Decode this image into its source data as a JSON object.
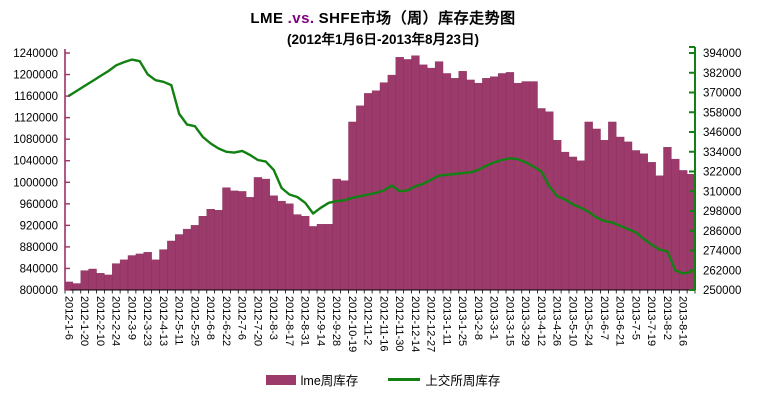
{
  "title": {
    "part1": "LME",
    "part2": ".vs.",
    "part3": "SHFE市场（周）库存走势图",
    "vs_color": "#800080",
    "subtitle": "(2012年1月6日-2013年8月23日)"
  },
  "legend": [
    {
      "label": "lme周库存",
      "type": "bar",
      "color": "#9c3a6b"
    },
    {
      "label": "上交所周库存",
      "type": "line",
      "color": "#128012"
    }
  ],
  "chart_data": {
    "type": "bar+line combo, dual axis",
    "title": "LME .vs. SHFE市场（周）库存走势图",
    "subtitle": "(2012年1月6日-2013年8月23日)",
    "grid": "off",
    "legend_position": "bottom",
    "label_every": 2,
    "x_labels": [
      "2012-1-6",
      "2012-1-20",
      "2012-2-10",
      "2012-2-24",
      "2012-3-9",
      "2012-3-23",
      "2012-4-13",
      "2012-5-11",
      "2012-5-25",
      "2012-6-8",
      "2012-6-22",
      "2012-7-6",
      "2012-7-20",
      "2012-8-3",
      "2012-8-17",
      "2012-8-31",
      "2012-9-14",
      "2012-9-28",
      "2012-10-19",
      "2012-11-2",
      "2012-11-16",
      "2012-11-30",
      "2012-12-14",
      "2012-12-27",
      "2013-1-11",
      "2013-1-25",
      "2013-2-8",
      "2013-3-1",
      "2013-3-15",
      "2013-3-29",
      "2013-4-12",
      "2013-4-26",
      "2013-5-10",
      "2013-5-24",
      "2013-6-7",
      "2013-6-21",
      "2013-7-5",
      "2013-7-19",
      "2013-8-2",
      "2013-8-16"
    ],
    "left_axis": {
      "min": 800000,
      "max": 1240000,
      "step": 40000,
      "color": "#993366",
      "ticks": [
        "800000",
        "840000",
        "880000",
        "920000",
        "960000",
        "1000000",
        "1040000",
        "1080000",
        "1120000",
        "1160000",
        "1200000",
        "1240000"
      ]
    },
    "right_axis": {
      "min": 250000,
      "max": 394000,
      "step": 12000,
      "color": "#128012",
      "ticks": [
        "250000",
        "262000",
        "274000",
        "286000",
        "298000",
        "310000",
        "322000",
        "334000",
        "346000",
        "358000",
        "370000",
        "382000",
        "394000"
      ]
    },
    "series": [
      {
        "name": "lme周库存",
        "type": "bar",
        "axis": "left",
        "color": "#9c3a6b",
        "border_color": "#86305a",
        "values": [
          815000,
          812000,
          836000,
          839000,
          831000,
          828000,
          849000,
          856000,
          864000,
          867000,
          870000,
          856000,
          875000,
          891000,
          903000,
          913000,
          920000,
          937000,
          950000,
          948000,
          990000,
          984000,
          983000,
          972000,
          1009000,
          1006000,
          975000,
          965000,
          960000,
          940000,
          937000,
          918000,
          922000,
          922000,
          1006000,
          1003000,
          1112000,
          1142000,
          1165000,
          1170000,
          1185000,
          1199000,
          1232000,
          1228000,
          1235000,
          1218000,
          1212000,
          1224000,
          1202000,
          1193000,
          1206000,
          1190000,
          1184000,
          1193000,
          1196000,
          1202000,
          1204000,
          1184000,
          1187000,
          1187000,
          1137000,
          1131000,
          1078000,
          1056000,
          1047000,
          1040000,
          1112000,
          1099000,
          1078000,
          1112000,
          1084000,
          1075000,
          1059000,
          1053000,
          1037000,
          1012000,
          1065000,
          1043000,
          1022000,
          1015000
        ]
      },
      {
        "name": "上交所周库存",
        "type": "line",
        "axis": "right",
        "color": "#128012",
        "values": [
          368000,
          371000,
          374000,
          377000,
          380000,
          383000,
          386500,
          388500,
          390000,
          389000,
          381000,
          377500,
          376500,
          374500,
          357000,
          350500,
          349500,
          343000,
          339000,
          336000,
          334000,
          333500,
          334500,
          332000,
          329000,
          328000,
          323000,
          312000,
          308000,
          306500,
          303000,
          296500,
          300000,
          303000,
          304000,
          304500,
          306000,
          307000,
          308000,
          309000,
          310500,
          313500,
          310000,
          310500,
          313000,
          314500,
          317000,
          319500,
          320000,
          320500,
          321000,
          321500,
          323000,
          325500,
          327500,
          329000,
          330000,
          329500,
          327500,
          325000,
          322000,
          313000,
          307000,
          305000,
          302000,
          300000,
          297500,
          294000,
          292000,
          291000,
          289000,
          287000,
          285000,
          281000,
          277500,
          274500,
          273500,
          262000,
          260000,
          261000
        ]
      }
    ]
  }
}
